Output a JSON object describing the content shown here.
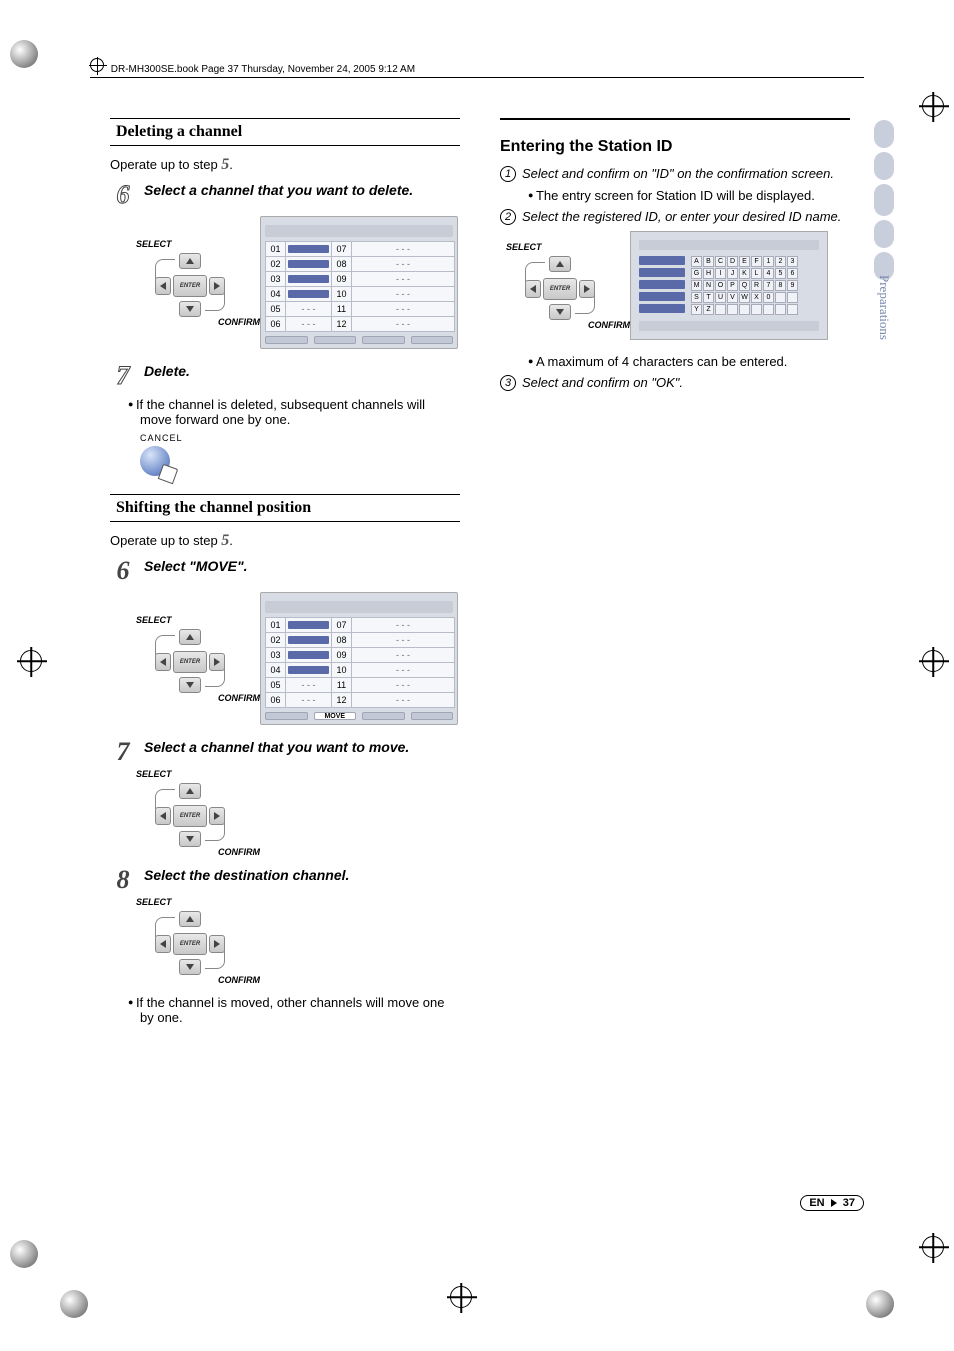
{
  "header": "DR-MH300SE.book  Page 37  Thursday, November 24, 2005  9:12 AM",
  "side_label": "Preparations",
  "page_footer_lang": "EN",
  "page_footer_num": "37",
  "remote": {
    "select_label": "SELECT",
    "confirm_label": "CONFIRM",
    "enter_label": "ENTER"
  },
  "cancel_label": "CANCEL",
  "left": {
    "delete": {
      "title": "Deleting a channel",
      "operate": "Operate up to step ",
      "operate_num": "5",
      "operate_suffix": ".",
      "step6_num": "6",
      "step6_text": "Select a channel that you want to delete.",
      "step7_num": "7",
      "step7_text": "Delete.",
      "step7_bullet": "If the channel is deleted, subsequent channels will move forward one by one."
    },
    "shift": {
      "title": "Shifting the channel position",
      "operate": "Operate up to step ",
      "operate_num": "5",
      "operate_suffix": ".",
      "step6_num": "6",
      "step6_text": "Select \"MOVE\".",
      "step7_num": "7",
      "step7_text": "Select a channel that you want to move.",
      "step8_num": "8",
      "step8_text": "Select the destination channel.",
      "step8_bullet": "If the channel is moved, other channels will move one by one."
    },
    "channel_screen": {
      "rows_left": [
        "01",
        "02",
        "03",
        "04",
        "05",
        "06"
      ],
      "rows_right": [
        "07",
        "08",
        "09",
        "10",
        "11",
        "12"
      ],
      "filled_left": [
        true,
        true,
        true,
        true,
        false,
        false
      ],
      "filled_right": [
        false,
        false,
        false,
        false,
        false,
        false
      ],
      "move_label": "MOVE"
    }
  },
  "right": {
    "title": "Entering the Station ID",
    "s1_num": "1",
    "s1_text": "Select and confirm on \"ID\" on the confirmation screen.",
    "s1_bullet": "The entry screen for Station ID will be displayed.",
    "s2_num": "2",
    "s2_text": "Select the registered ID, or enter your desired ID name.",
    "s2_bullet": "A maximum of 4 characters can be entered.",
    "s3_num": "3",
    "s3_text": "Select and confirm on \"OK\".",
    "kbd_chars": [
      "A",
      "B",
      "C",
      "D",
      "E",
      "F",
      "1",
      "2",
      "3",
      "G",
      "H",
      "I",
      "J",
      "K",
      "L",
      "4",
      "5",
      "6",
      "M",
      "N",
      "O",
      "P",
      "Q",
      "R",
      "7",
      "8",
      "9",
      "S",
      "T",
      "U",
      "V",
      "W",
      "X",
      "0",
      "",
      "",
      "Y",
      "Z",
      "",
      "",
      "",
      "",
      "",
      "",
      ""
    ]
  },
  "colors": {
    "bar": "#5a6aa8",
    "screen_bg": "#d8dde5",
    "cell_bg": "#f6f7fb",
    "side_tab": "#c8cedc",
    "side_text": "#7a88b0"
  }
}
